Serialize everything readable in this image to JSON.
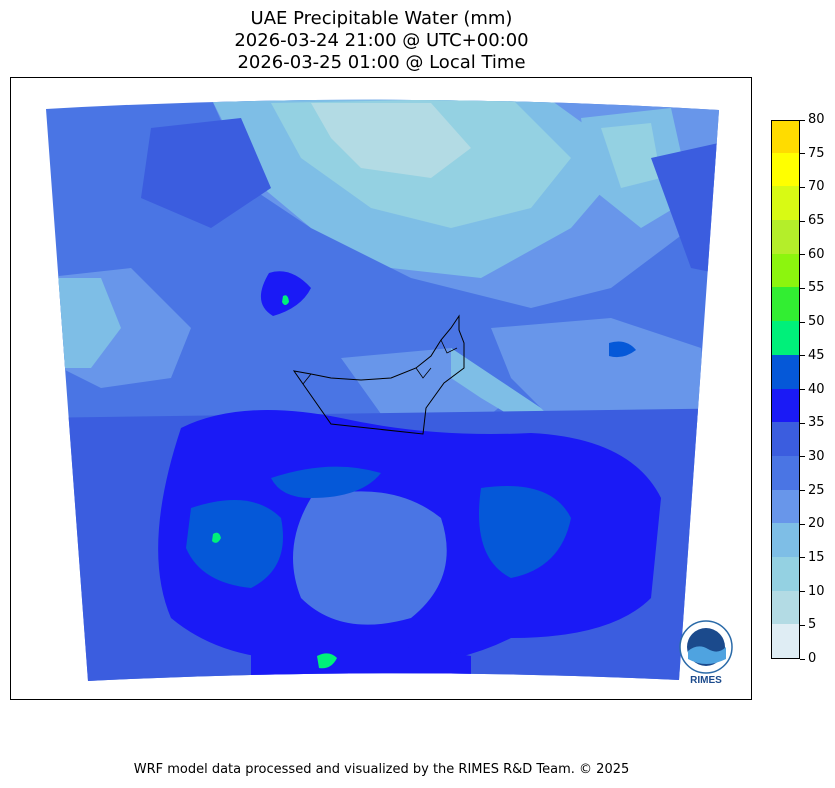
{
  "title": {
    "line1": "UAE Precipitable Water (mm)",
    "line2": "2026-03-24 21:00 @ UTC+00:00",
    "line3": "2026-03-25 01:00 @ Local Time"
  },
  "colorbar": {
    "levels": [
      "0",
      "5",
      "10",
      "15",
      "20",
      "25",
      "30",
      "35",
      "40",
      "45",
      "50",
      "55",
      "60",
      "65",
      "70",
      "75",
      "80"
    ],
    "colors": [
      "#dfedf4",
      "#b3dbe4",
      "#94d1e2",
      "#7ebee6",
      "#6896ea",
      "#4a75e4",
      "#3b5ddf",
      "#1a1af6",
      "#0558d8",
      "#00f07a",
      "#32ee32",
      "#8cf50e",
      "#b4ee2a",
      "#d8fa14",
      "#ffff00",
      "#ffdc00"
    ]
  },
  "credit": "WRF model data processed and visualized by the RIMES R&D Team. © 2025",
  "logo": {
    "text": "RIMES",
    "ring_text": "Regional Integrated Multi-Hazard Early Warning System"
  }
}
